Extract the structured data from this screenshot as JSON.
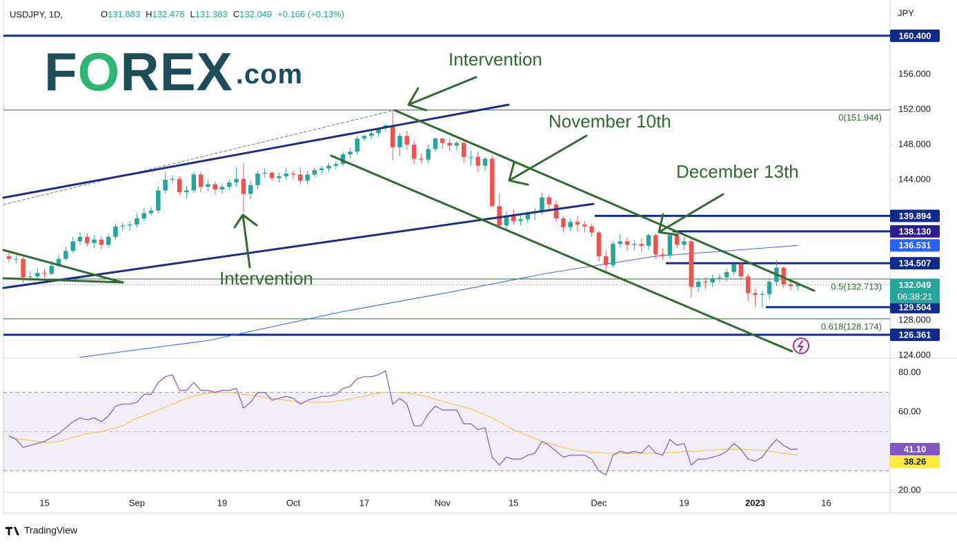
{
  "header": {
    "symbol": "USDJPY, 1D,",
    "ohlc": [
      {
        "key": "O",
        "value": "131.883"
      },
      {
        "key": "H",
        "value": "132.478"
      },
      {
        "key": "L",
        "value": "131.383"
      },
      {
        "key": "C",
        "value": "132.049"
      }
    ],
    "change": "+0.166 (+0.13%)",
    "currency": "JPY"
  },
  "logo": [
    "F",
    "O",
    "REX",
    ".com"
  ],
  "annotations": [
    "Intervention",
    "November 10th",
    "December 13th",
    "Intervention"
  ],
  "footer": "TradingView",
  "chart_data": [
    {
      "type": "candlestick",
      "categories": [
        null,
        null,
        null,
        null,
        null,
        "15",
        null,
        null,
        null,
        null,
        null,
        null,
        null,
        null,
        null,
        null,
        null,
        null,
        "Sep",
        null,
        null,
        null,
        null,
        null,
        null,
        null,
        null,
        null,
        null,
        null,
        "19",
        null,
        null,
        null,
        null,
        null,
        null,
        null,
        null,
        null,
        "Oct",
        null,
        null,
        null,
        null,
        null,
        null,
        null,
        null,
        null,
        "17",
        null,
        null,
        null,
        null,
        null,
        null,
        null,
        null,
        null,
        null,
        "Nov",
        null,
        null,
        null,
        null,
        null,
        null,
        null,
        null,
        null,
        "15",
        null,
        null,
        null,
        null,
        null,
        null,
        null,
        null,
        null,
        null,
        null,
        "Dec",
        null,
        null,
        null,
        null,
        null,
        null,
        null,
        null,
        null,
        null,
        null,
        "19",
        null,
        null,
        null,
        null,
        null,
        null,
        null,
        null,
        null,
        "2023",
        null,
        null,
        null,
        null,
        null,
        null,
        null,
        null,
        null,
        "16"
      ],
      "open": [
        135.3,
        135.0,
        135.0,
        132.9,
        133.0,
        133.4,
        133.3,
        134.2,
        135.0,
        135.9,
        137.0,
        137.5,
        136.8,
        137.2,
        136.6,
        137.5,
        138.7,
        138.8,
        138.9,
        139.6,
        140.2,
        140.5,
        142.8,
        144.0,
        144.1,
        142.6,
        142.8,
        144.6,
        143.2,
        143.5,
        142.9,
        143.2,
        143.7,
        144.1,
        142.4,
        143.4,
        144.7,
        144.8,
        144.2,
        144.4,
        144.7,
        144.6,
        143.9,
        144.6,
        145.1,
        145.3,
        145.6,
        145.8,
        146.9,
        147.2,
        148.7,
        149.0,
        149.3,
        149.9,
        150.2,
        147.7,
        149.0,
        148.0,
        146.4,
        146.3,
        147.5,
        148.7,
        148.2,
        147.9,
        148.2,
        146.6,
        146.6,
        145.6,
        146.4,
        141.0,
        138.8,
        139.9,
        139.3,
        139.5,
        140.2,
        140.4,
        142.0,
        141.2,
        139.6,
        138.6,
        139.2,
        138.9,
        138.7,
        138.0,
        135.3,
        134.3,
        136.7,
        137.0,
        136.6,
        136.7,
        136.5,
        137.7,
        135.5,
        135.4,
        137.7,
        136.6,
        137.0,
        131.8,
        132.4,
        132.3,
        132.8,
        132.9,
        133.5,
        134.4,
        133.0,
        131.1,
        130.9,
        131.0,
        132.4,
        134.0,
        132.1,
        131.883,
        null,
        null,
        null,
        null
      ],
      "high": [
        135.9,
        135.6,
        135.4,
        133.6,
        134.0,
        133.9,
        134.8,
        135.5,
        136.4,
        137.5,
        138.0,
        137.9,
        137.7,
        137.6,
        137.9,
        139.0,
        139.1,
        139.3,
        140.2,
        140.8,
        140.9,
        143.3,
        144.9,
        144.5,
        144.4,
        143.3,
        144.9,
        144.9,
        144.0,
        143.8,
        143.6,
        144.0,
        145.4,
        145.9,
        143.9,
        145.0,
        145.3,
        145.0,
        144.8,
        145.4,
        145.1,
        145.4,
        145.0,
        145.4,
        145.6,
        145.9,
        146.1,
        147.2,
        147.6,
        149.0,
        149.1,
        149.7,
        150.0,
        150.4,
        151.94,
        149.3,
        149.6,
        148.4,
        147.0,
        148.0,
        148.8,
        148.8,
        148.6,
        148.4,
        148.7,
        147.3,
        147.2,
        146.6,
        146.8,
        142.5,
        140.4,
        140.6,
        140.0,
        140.5,
        140.8,
        142.5,
        142.3,
        141.6,
        139.9,
        139.6,
        139.9,
        139.3,
        139.0,
        138.2,
        136.0,
        137.0,
        137.8,
        137.4,
        137.1,
        137.3,
        137.9,
        137.9,
        136.2,
        138.0,
        138.2,
        137.5,
        137.5,
        132.8,
        132.9,
        133.2,
        133.3,
        133.9,
        134.5,
        134.6,
        133.3,
        131.6,
        131.4,
        132.7,
        134.8,
        134.1,
        132.6,
        132.478,
        null,
        null,
        null,
        null
      ],
      "low": [
        134.6,
        134.5,
        132.3,
        132.4,
        132.6,
        132.8,
        133.2,
        134.0,
        134.8,
        135.6,
        136.6,
        136.4,
        136.2,
        136.1,
        136.3,
        137.2,
        138.2,
        138.2,
        138.6,
        139.3,
        139.9,
        140.2,
        142.4,
        143.5,
        142.3,
        141.9,
        142.5,
        142.6,
        142.7,
        142.3,
        142.4,
        142.8,
        143.2,
        140.3,
        141.8,
        143.0,
        144.2,
        143.9,
        143.7,
        144.0,
        144.1,
        143.5,
        143.5,
        144.3,
        144.6,
        144.9,
        145.2,
        145.5,
        146.4,
        146.8,
        148.4,
        148.7,
        148.9,
        149.5,
        146.2,
        146.7,
        147.4,
        145.8,
        145.9,
        145.9,
        147.2,
        147.5,
        147.3,
        147.3,
        145.9,
        145.6,
        144.9,
        145.0,
        140.9,
        138.4,
        138.3,
        138.9,
        138.8,
        139.0,
        139.4,
        140.0,
        140.5,
        139.2,
        138.0,
        138.1,
        138.1,
        138.0,
        137.5,
        134.7,
        133.6,
        134.0,
        136.2,
        135.9,
        136.0,
        135.8,
        136.0,
        135.0,
        134.9,
        135.0,
        136.2,
        136.1,
        130.6,
        131.2,
        131.6,
        131.8,
        132.3,
        132.4,
        133.1,
        132.6,
        130.2,
        129.6,
        129.5,
        130.4,
        131.9,
        131.7,
        131.4,
        131.383,
        null,
        null,
        null,
        null
      ],
      "close": [
        135.0,
        135.0,
        132.9,
        133.0,
        133.4,
        133.3,
        134.2,
        135.0,
        135.9,
        137.0,
        137.5,
        136.8,
        137.2,
        136.6,
        137.5,
        138.7,
        138.8,
        138.9,
        139.6,
        140.2,
        140.5,
        142.8,
        144.0,
        144.1,
        142.6,
        142.8,
        144.6,
        143.2,
        143.5,
        142.9,
        143.2,
        143.7,
        144.1,
        142.4,
        143.4,
        144.7,
        144.8,
        144.2,
        144.4,
        144.7,
        144.6,
        143.9,
        144.6,
        145.1,
        145.3,
        145.6,
        145.8,
        146.9,
        147.2,
        148.7,
        149.0,
        149.3,
        149.9,
        150.2,
        147.7,
        149.0,
        148.0,
        146.4,
        146.3,
        147.5,
        148.7,
        148.2,
        147.9,
        148.2,
        146.6,
        146.6,
        145.6,
        146.4,
        141.0,
        138.8,
        139.9,
        139.3,
        139.5,
        140.2,
        140.4,
        142.0,
        141.2,
        139.6,
        138.6,
        139.2,
        138.9,
        138.7,
        138.0,
        135.3,
        134.3,
        136.7,
        137.0,
        136.6,
        136.7,
        136.5,
        137.7,
        135.5,
        135.4,
        137.7,
        136.6,
        137.0,
        131.8,
        132.4,
        132.3,
        132.8,
        132.9,
        133.5,
        134.4,
        133.0,
        131.1,
        130.9,
        131.0,
        132.4,
        134.0,
        132.1,
        131.9,
        132.049,
        null,
        null,
        null,
        null
      ],
      "up_color": "#26a69a",
      "down_color": "#ef5350",
      "ylim": [
        123.69,
        164.47
      ],
      "yticks": [
        {
          "value": 124,
          "label": "124.000"
        },
        {
          "value": 128,
          "label": "128.000"
        },
        {
          "value": 144,
          "label": "144.000"
        },
        {
          "value": 148,
          "label": "148.000"
        },
        {
          "value": 152,
          "label": "152.000"
        },
        {
          "value": 156,
          "label": "156.000"
        }
      ],
      "moving_average": {
        "color": "#2962ff",
        "x": [
          10,
          28,
          47,
          62,
          76,
          91,
          111
        ],
        "values": [
          123.8,
          125.7,
          129.0,
          131.2,
          133.4,
          135.3,
          136.531
        ]
      },
      "levels": [
        {
          "value": 160.4,
          "label": "160.400",
          "color": "#0d2a8c"
        },
        {
          "value": 139.894,
          "label": "139.894",
          "color": "#0d2a8c"
        },
        {
          "value": 138.13,
          "label": "138.130",
          "color": "#311b92"
        },
        {
          "value": 134.507,
          "label": "134.507",
          "color": "#0d2a8c"
        },
        {
          "value": 129.504,
          "label": "129.504",
          "color": "#0d2a8c"
        },
        {
          "value": 126.361,
          "label": "126.361",
          "color": "#0d2a8c"
        }
      ],
      "level_line_color": "#0d2a8c",
      "fib_levels": [
        {
          "value": 151.944,
          "label": "0(151.944)"
        },
        {
          "value": 132.713,
          "label": "0.5(132.713)"
        },
        {
          "value": 128.174,
          "label": "0.618(128.174)"
        }
      ],
      "fib_color": "#2e6b2e",
      "countdown": "06:38:21",
      "last_color": "#26a69a"
    },
    {
      "type": "line",
      "values": [
        48,
        46,
        42,
        43,
        44,
        45,
        47,
        49,
        52,
        55,
        57,
        56,
        57,
        55,
        58,
        63,
        64,
        64,
        65,
        69,
        69,
        75,
        78,
        79,
        71,
        71,
        75,
        71,
        71,
        70,
        71,
        71,
        72,
        62,
        65,
        70,
        70,
        66,
        67,
        68,
        67,
        64,
        66,
        67,
        68,
        68,
        69,
        72,
        73,
        77,
        78,
        78,
        79,
        81,
        64,
        67,
        64,
        53,
        53,
        59,
        63,
        61,
        61,
        61,
        54,
        54,
        51,
        52,
        37,
        33,
        37,
        36,
        36,
        38,
        39,
        45,
        43,
        40,
        37,
        38,
        38,
        38,
        36,
        30,
        28,
        38,
        40,
        39,
        40,
        39,
        43,
        39,
        38,
        46,
        43,
        44,
        33,
        36,
        36,
        37,
        38,
        40,
        44,
        41,
        36,
        35,
        37,
        42,
        46,
        43,
        41,
        41.1
      ],
      "color": "#7e57c2",
      "ma_values": [
        47,
        46.5,
        46,
        45.5,
        45,
        44.5,
        44.5,
        45,
        46,
        47,
        48,
        49,
        49.5,
        50,
        51,
        52,
        53,
        55,
        57,
        58,
        59.5,
        61,
        62.5,
        64,
        65.5,
        67,
        68,
        69,
        69.5,
        70,
        70,
        70,
        69.5,
        69,
        68.5,
        68,
        67.5,
        67,
        66.5,
        66,
        65.5,
        65,
        65,
        65,
        65,
        65,
        65.5,
        66,
        66.5,
        67.5,
        68,
        69,
        69.5,
        70,
        70,
        70,
        69.5,
        69,
        68.5,
        67.5,
        66.5,
        65.5,
        64.5,
        63.5,
        62.5,
        61.5,
        60,
        58.5,
        57,
        55,
        53,
        51,
        49.5,
        48,
        46.5,
        45,
        44,
        43,
        42,
        41,
        40.5,
        40,
        39.5,
        39.5,
        39,
        39,
        39,
        39,
        39,
        39,
        39,
        39,
        39,
        39.5,
        39.5,
        40,
        40,
        40,
        40.5,
        40.5,
        41,
        41,
        41,
        41,
        41,
        40.5,
        40.5,
        40,
        39.5,
        39,
        38.5,
        38.26
      ],
      "ma_color": "#f2c94c",
      "ylim": [
        19.0,
        87.4
      ],
      "yticks": [
        {
          "value": 20,
          "label": "20.00"
        },
        {
          "value": 60,
          "label": "60.00"
        },
        {
          "value": 80,
          "label": "80.00"
        }
      ],
      "bands": [
        30,
        70
      ],
      "midline": 50,
      "band_color": "#7e57c2",
      "badges": [
        {
          "value": 41.1,
          "label": "41.10",
          "color": "#7e57c2"
        },
        {
          "value": 38.26,
          "label": "38.26",
          "color": "#ffeb3b"
        }
      ]
    }
  ]
}
